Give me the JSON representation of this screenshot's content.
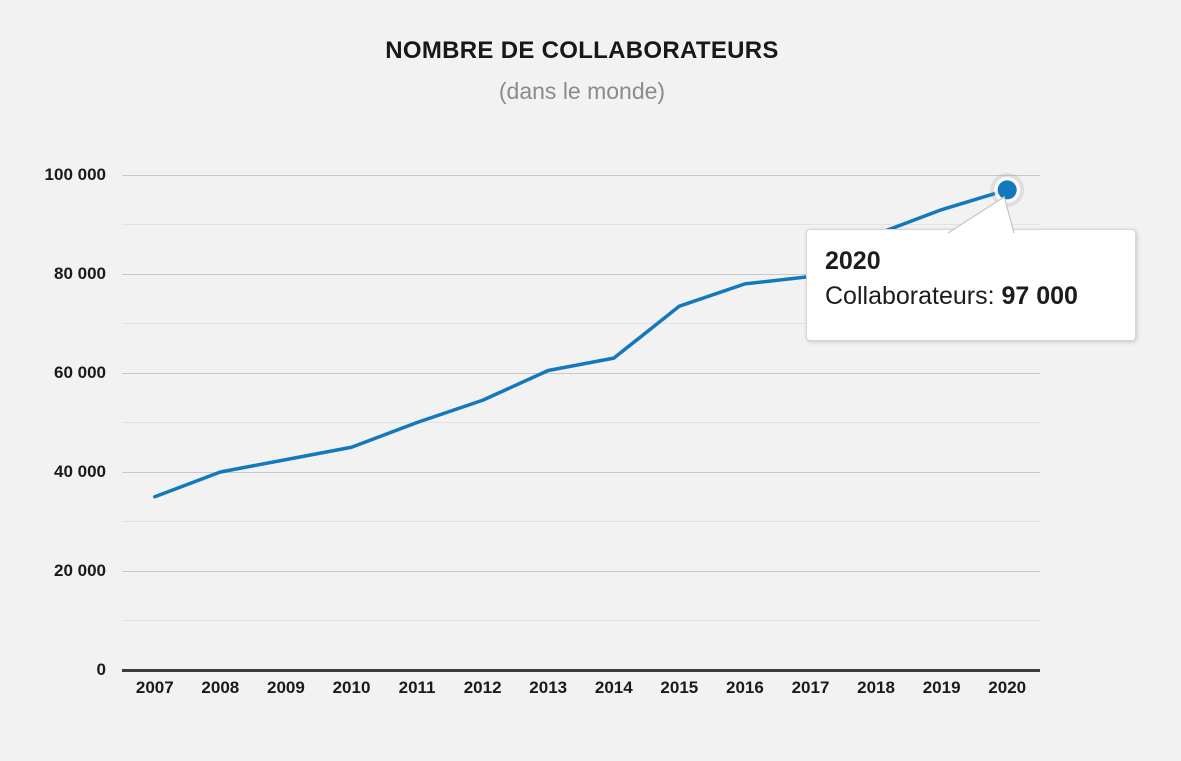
{
  "page": {
    "background": "#f2f2f2"
  },
  "chart_data": {
    "type": "line",
    "title": "NOMBRE DE COLLABORATEURS",
    "subtitle": "(dans le monde)",
    "categories": [
      "2007",
      "2008",
      "2009",
      "2010",
      "2011",
      "2012",
      "2013",
      "2014",
      "2015",
      "2016",
      "2017",
      "2018",
      "2019",
      "2020"
    ],
    "series": [
      {
        "name": "Collaborateurs",
        "values": [
          35000,
          40000,
          42500,
          45000,
          50000,
          54500,
          60500,
          63000,
          73500,
          78000,
          79500,
          88000,
          93000,
          97000
        ]
      }
    ],
    "xlabel": "",
    "ylabel": "",
    "ylim": [
      0,
      100000
    ],
    "grid": true,
    "legend": "none",
    "y_major_ticks": [
      {
        "value": 0,
        "label": "0"
      },
      {
        "value": 20000,
        "label": "20 000"
      },
      {
        "value": 40000,
        "label": "40 000"
      },
      {
        "value": 60000,
        "label": "60 000"
      },
      {
        "value": 80000,
        "label": "80 000"
      },
      {
        "value": 100000,
        "label": "100 000"
      }
    ],
    "y_minor_ticks": [
      10000,
      30000,
      50000,
      70000,
      90000
    ],
    "highlight_point": {
      "category": "2020",
      "value": 97000
    }
  },
  "tooltip": {
    "year": "2020",
    "series_label": "Collaborateurs: ",
    "value": "97 000"
  },
  "colors": {
    "line": "#1478bd",
    "marker_fill": "#1478bd",
    "background": "#f2f2f2",
    "grid_major": "#c9c9c9",
    "grid_minor": "#e2e2e2",
    "axis": "#3d3d3d",
    "title_text": "#181818",
    "subtitle_text": "#8b8b8b",
    "tooltip_bg": "#ffffff",
    "tooltip_border": "#d6d6d6"
  }
}
